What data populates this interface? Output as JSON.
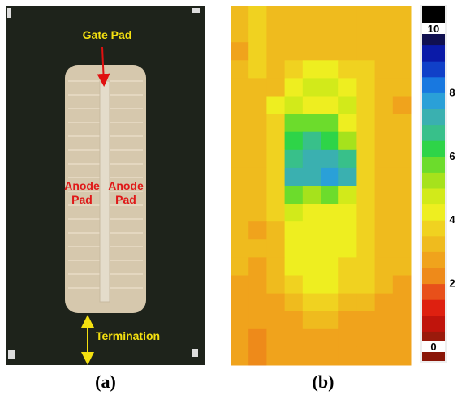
{
  "photo": {
    "gate_label": "Gate Pad",
    "anode_left": [
      "Anode",
      "Pad"
    ],
    "anode_right": [
      "Anode",
      "Pad"
    ],
    "termination_label": "Termination"
  },
  "panel_labels": [
    "(a)",
    "(b)"
  ],
  "chart_data": {
    "type": "heatmap",
    "zlim": [
      0,
      10
    ],
    "zticks": [
      0,
      2,
      4,
      6,
      8,
      10
    ],
    "colors": [
      "#9a1a0c",
      "#c0140c",
      "#de2010",
      "#e8501a",
      "#ee8a1a",
      "#f0a31c",
      "#efbb1e",
      "#f0d220",
      "#eeee20",
      "#d2ea1a",
      "#a6e21c",
      "#6cdc2c",
      "#2ed448",
      "#38c08a",
      "#3ab0b0",
      "#2aa0d8",
      "#1878e0",
      "#1040c8",
      "#0a1aa8",
      "#101050"
    ],
    "values": [
      [
        3,
        3.5,
        3,
        3,
        3,
        3,
        3,
        3,
        3,
        3
      ],
      [
        3,
        3.5,
        3,
        3,
        3,
        3,
        3,
        3,
        3,
        3
      ],
      [
        2.5,
        3.5,
        3,
        3,
        3,
        3,
        3,
        3,
        3,
        3
      ],
      [
        3,
        3.5,
        3,
        3.5,
        4,
        4,
        3.5,
        3.5,
        3,
        3
      ],
      [
        3,
        3,
        3,
        4,
        4.5,
        4.5,
        4,
        3.5,
        3,
        3
      ],
      [
        3,
        3,
        4,
        4.5,
        4,
        4,
        4.5,
        3.5,
        3,
        2.5
      ],
      [
        3,
        3,
        3.5,
        5.5,
        5.5,
        5.5,
        4,
        3.5,
        3,
        3
      ],
      [
        3,
        3,
        3.5,
        6,
        6.5,
        6,
        5,
        3.5,
        3,
        3
      ],
      [
        3,
        3,
        3.5,
        6.5,
        7,
        7,
        6.5,
        3.5,
        3,
        3
      ],
      [
        3,
        3,
        3.5,
        7,
        7,
        7.5,
        7,
        3.5,
        3,
        3
      ],
      [
        3,
        3,
        3.5,
        5.5,
        5,
        5.5,
        4.5,
        3.5,
        3,
        3
      ],
      [
        3,
        3,
        3.5,
        4.5,
        4,
        4,
        4,
        3.5,
        3,
        3
      ],
      [
        3,
        2.5,
        3,
        4,
        4,
        4,
        4,
        3.5,
        3,
        3
      ],
      [
        3,
        3,
        3,
        4,
        4,
        4,
        4,
        3.5,
        3,
        3
      ],
      [
        3,
        2.5,
        3,
        4,
        4,
        4,
        3.5,
        3.5,
        3,
        3
      ],
      [
        2.5,
        2.5,
        3,
        3.5,
        4,
        4,
        3.5,
        3.5,
        3,
        2.5
      ],
      [
        2.5,
        2.5,
        2.5,
        3,
        3.5,
        3.5,
        3,
        3,
        2.5,
        2.5
      ],
      [
        2.5,
        2.5,
        2.5,
        2.5,
        3,
        3,
        2.5,
        2.5,
        2.5,
        2.5
      ],
      [
        2.5,
        2,
        2.5,
        2.5,
        2.5,
        2.5,
        2.5,
        2.5,
        2.5,
        2.5
      ],
      [
        2.5,
        2,
        2.5,
        2.5,
        2.5,
        2.5,
        2.5,
        2.5,
        2.5,
        2.5
      ]
    ]
  }
}
